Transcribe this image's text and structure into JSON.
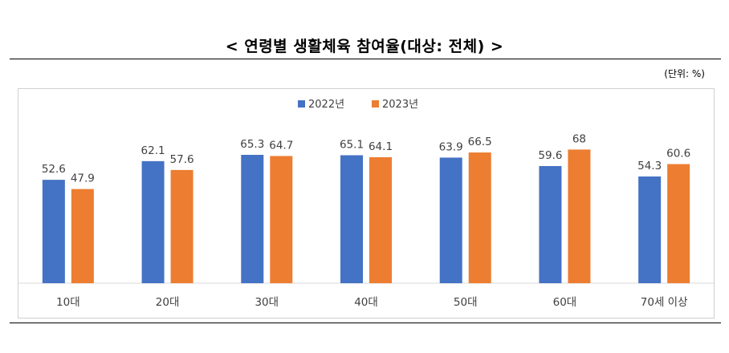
{
  "header": {
    "title": "< 연령별 생활체육 참여율(대상: 전체) >",
    "unit": "(단위: %)"
  },
  "colors": {
    "series_2022": "#4472c4",
    "series_2023": "#ed7d31",
    "axis": "#d9d9d9"
  },
  "chart_data": {
    "type": "bar",
    "categories": [
      "10대",
      "20대",
      "30대",
      "40대",
      "50대",
      "60대",
      "70세 이상"
    ],
    "series": [
      {
        "name": "2022년",
        "values": [
          52.6,
          62.1,
          65.3,
          65.1,
          63.9,
          59.6,
          54.3
        ]
      },
      {
        "name": "2023년",
        "values": [
          47.9,
          57.6,
          64.7,
          64.1,
          66.5,
          68,
          60.6
        ]
      }
    ],
    "value_labels": [
      [
        "52.6",
        "62.1",
        "65.3",
        "65.1",
        "63.9",
        "59.6",
        "54.3"
      ],
      [
        "47.9",
        "57.6",
        "64.7",
        "64.1",
        "66.5",
        "68",
        "60.6"
      ]
    ],
    "ylim": [
      0,
      100
    ],
    "grid": false,
    "legend": "top-center"
  }
}
